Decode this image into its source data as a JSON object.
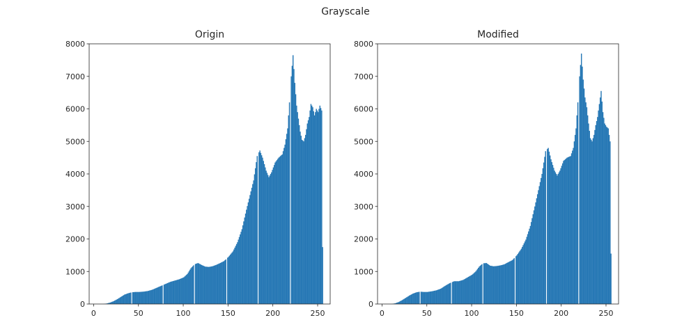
{
  "figure": {
    "suptitle": "Grayscale",
    "bar_color": "#2778b5"
  },
  "chart_data": [
    {
      "type": "bar",
      "title": "Origin",
      "xlabel": "",
      "ylabel": "",
      "xlim": [
        -5,
        264
      ],
      "ylim": [
        0,
        8000
      ],
      "xticks": [
        0,
        50,
        100,
        150,
        200,
        250
      ],
      "yticks": [
        0,
        1000,
        2000,
        3000,
        4000,
        5000,
        6000,
        7000,
        8000
      ],
      "grid": false,
      "gap_bins": [
        42,
        77,
        112,
        148,
        183,
        219
      ],
      "curve_points": [
        [
          0,
          0
        ],
        [
          10,
          0
        ],
        [
          14,
          15
        ],
        [
          18,
          45
        ],
        [
          22,
          90
        ],
        [
          26,
          150
        ],
        [
          30,
          220
        ],
        [
          34,
          290
        ],
        [
          38,
          330
        ],
        [
          42,
          360
        ],
        [
          46,
          370
        ],
        [
          50,
          370
        ],
        [
          55,
          380
        ],
        [
          60,
          400
        ],
        [
          65,
          440
        ],
        [
          70,
          500
        ],
        [
          75,
          560
        ],
        [
          80,
          620
        ],
        [
          85,
          680
        ],
        [
          90,
          720
        ],
        [
          95,
          760
        ],
        [
          100,
          820
        ],
        [
          104,
          920
        ],
        [
          108,
          1100
        ],
        [
          112,
          1220
        ],
        [
          116,
          1260
        ],
        [
          120,
          1200
        ],
        [
          124,
          1150
        ],
        [
          128,
          1140
        ],
        [
          132,
          1160
        ],
        [
          136,
          1200
        ],
        [
          140,
          1250
        ],
        [
          145,
          1320
        ],
        [
          150,
          1450
        ],
        [
          155,
          1620
        ],
        [
          160,
          1900
        ],
        [
          165,
          2300
        ],
        [
          170,
          2900
        ],
        [
          174,
          3350
        ],
        [
          178,
          3800
        ],
        [
          182,
          4550
        ],
        [
          185,
          4720
        ],
        [
          188,
          4500
        ],
        [
          192,
          4100
        ],
        [
          195,
          3900
        ],
        [
          198,
          4050
        ],
        [
          202,
          4350
        ],
        [
          206,
          4500
        ],
        [
          210,
          4600
        ],
        [
          213,
          4900
        ],
        [
          216,
          5400
        ],
        [
          218,
          6200
        ],
        [
          220,
          7000
        ],
        [
          222,
          7650
        ],
        [
          224,
          6800
        ],
        [
          226,
          6100
        ],
        [
          228,
          5700
        ],
        [
          230,
          5300
        ],
        [
          232,
          5050
        ],
        [
          234,
          5000
        ],
        [
          236,
          5200
        ],
        [
          238,
          5550
        ],
        [
          240,
          5750
        ],
        [
          242,
          6150
        ],
        [
          244,
          6050
        ],
        [
          246,
          5800
        ],
        [
          248,
          6000
        ],
        [
          250,
          5900
        ],
        [
          252,
          6100
        ],
        [
          254,
          5950
        ],
        [
          255,
          1750
        ]
      ]
    },
    {
      "type": "bar",
      "title": "Modified",
      "xlabel": "",
      "ylabel": "",
      "xlim": [
        -5,
        264
      ],
      "ylim": [
        0,
        8000
      ],
      "xticks": [
        0,
        50,
        100,
        150,
        200,
        250
      ],
      "yticks": [
        0,
        1000,
        2000,
        3000,
        4000,
        5000,
        6000,
        7000,
        8000
      ],
      "grid": false,
      "gap_bins": [
        42,
        77,
        112,
        148,
        183,
        219
      ],
      "curve_points": [
        [
          0,
          0
        ],
        [
          10,
          0
        ],
        [
          14,
          20
        ],
        [
          18,
          60
        ],
        [
          22,
          120
        ],
        [
          26,
          190
        ],
        [
          30,
          260
        ],
        [
          34,
          320
        ],
        [
          38,
          360
        ],
        [
          42,
          380
        ],
        [
          46,
          370
        ],
        [
          50,
          370
        ],
        [
          55,
          390
        ],
        [
          60,
          420
        ],
        [
          65,
          470
        ],
        [
          70,
          560
        ],
        [
          75,
          640
        ],
        [
          80,
          700
        ],
        [
          85,
          700
        ],
        [
          90,
          740
        ],
        [
          95,
          820
        ],
        [
          100,
          900
        ],
        [
          104,
          1000
        ],
        [
          108,
          1150
        ],
        [
          112,
          1250
        ],
        [
          116,
          1260
        ],
        [
          120,
          1180
        ],
        [
          124,
          1160
        ],
        [
          128,
          1170
        ],
        [
          132,
          1190
        ],
        [
          136,
          1220
        ],
        [
          140,
          1280
        ],
        [
          145,
          1350
        ],
        [
          150,
          1500
        ],
        [
          155,
          1700
        ],
        [
          160,
          1980
        ],
        [
          165,
          2400
        ],
        [
          170,
          3000
        ],
        [
          174,
          3500
        ],
        [
          178,
          4000
        ],
        [
          182,
          4700
        ],
        [
          185,
          4800
        ],
        [
          188,
          4450
        ],
        [
          192,
          4100
        ],
        [
          195,
          3950
        ],
        [
          198,
          4100
        ],
        [
          202,
          4400
        ],
        [
          206,
          4500
        ],
        [
          210,
          4550
        ],
        [
          213,
          4800
        ],
        [
          216,
          5400
        ],
        [
          218,
          6200
        ],
        [
          220,
          7000
        ],
        [
          222,
          7700
        ],
        [
          224,
          6900
        ],
        [
          226,
          6350
        ],
        [
          228,
          6050
        ],
        [
          230,
          5550
        ],
        [
          232,
          5100
        ],
        [
          234,
          5000
        ],
        [
          236,
          5200
        ],
        [
          238,
          5500
        ],
        [
          240,
          5750
        ],
        [
          242,
          6150
        ],
        [
          244,
          6550
        ],
        [
          246,
          5900
        ],
        [
          248,
          5550
        ],
        [
          250,
          5450
        ],
        [
          252,
          5400
        ],
        [
          254,
          5000
        ],
        [
          255,
          1550
        ]
      ]
    }
  ]
}
